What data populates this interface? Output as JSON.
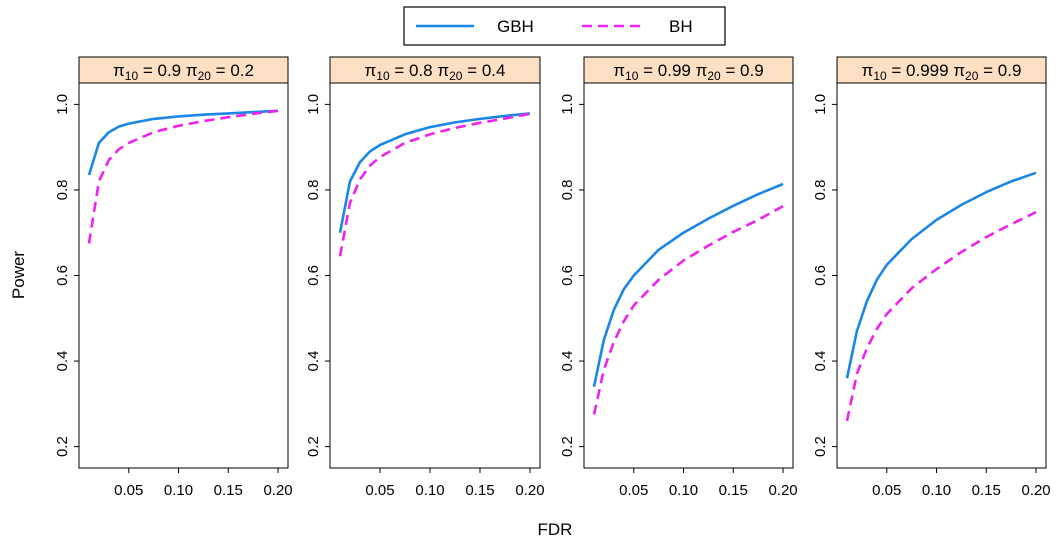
{
  "chart_data": {
    "type": "line",
    "xlabel": "FDR",
    "ylabel": "Power",
    "xlim": [
      0.0,
      0.21
    ],
    "ylim": [
      0.15,
      1.05
    ],
    "xticks": [
      "0.05",
      "0.10",
      "0.15",
      "0.20"
    ],
    "yticks": [
      "0.2",
      "0.4",
      "0.6",
      "0.8",
      "1.0"
    ],
    "legend": {
      "placement": "top-center",
      "entries": [
        {
          "label": "GBH",
          "color": "#1a86e8",
          "dash": "solid"
        },
        {
          "label": "BH",
          "color": "#ee22ee",
          "dash": "dashed"
        }
      ]
    },
    "strip_color": "#fde0c4",
    "x": [
      0.01,
      0.02,
      0.03,
      0.04,
      0.05,
      0.075,
      0.1,
      0.125,
      0.15,
      0.175,
      0.2
    ],
    "panels": [
      {
        "pi10": "0.9",
        "pi20": "0.2",
        "series": [
          {
            "name": "GBH",
            "values": [
              0.835,
              0.91,
              0.935,
              0.948,
              0.955,
              0.966,
              0.972,
              0.976,
              0.979,
              0.982,
              0.985
            ]
          },
          {
            "name": "BH",
            "values": [
              0.675,
              0.82,
              0.87,
              0.895,
              0.91,
              0.935,
              0.95,
              0.961,
              0.97,
              0.978,
              0.985
            ]
          }
        ]
      },
      {
        "pi10": "0.8",
        "pi20": "0.4",
        "series": [
          {
            "name": "GBH",
            "values": [
              0.7,
              0.82,
              0.865,
              0.89,
              0.905,
              0.93,
              0.947,
              0.958,
              0.966,
              0.973,
              0.979
            ]
          },
          {
            "name": "BH",
            "values": [
              0.645,
              0.77,
              0.825,
              0.857,
              0.877,
              0.91,
              0.93,
              0.945,
              0.957,
              0.967,
              0.978
            ]
          }
        ]
      },
      {
        "pi10": "0.99",
        "pi20": "0.9",
        "series": [
          {
            "name": "GBH",
            "values": [
              0.34,
              0.45,
              0.52,
              0.568,
              0.6,
              0.66,
              0.7,
              0.733,
              0.763,
              0.79,
              0.814
            ]
          },
          {
            "name": "BH",
            "values": [
              0.275,
              0.38,
              0.445,
              0.493,
              0.53,
              0.59,
              0.635,
              0.67,
              0.702,
              0.73,
              0.762
            ]
          }
        ]
      },
      {
        "pi10": "0.999",
        "pi20": "0.9",
        "series": [
          {
            "name": "GBH",
            "values": [
              0.36,
              0.47,
              0.54,
              0.59,
              0.625,
              0.685,
              0.73,
              0.765,
              0.795,
              0.82,
              0.84
            ]
          },
          {
            "name": "BH",
            "values": [
              0.26,
              0.37,
              0.43,
              0.475,
              0.51,
              0.57,
              0.615,
              0.655,
              0.69,
              0.72,
              0.748
            ]
          }
        ]
      }
    ]
  }
}
